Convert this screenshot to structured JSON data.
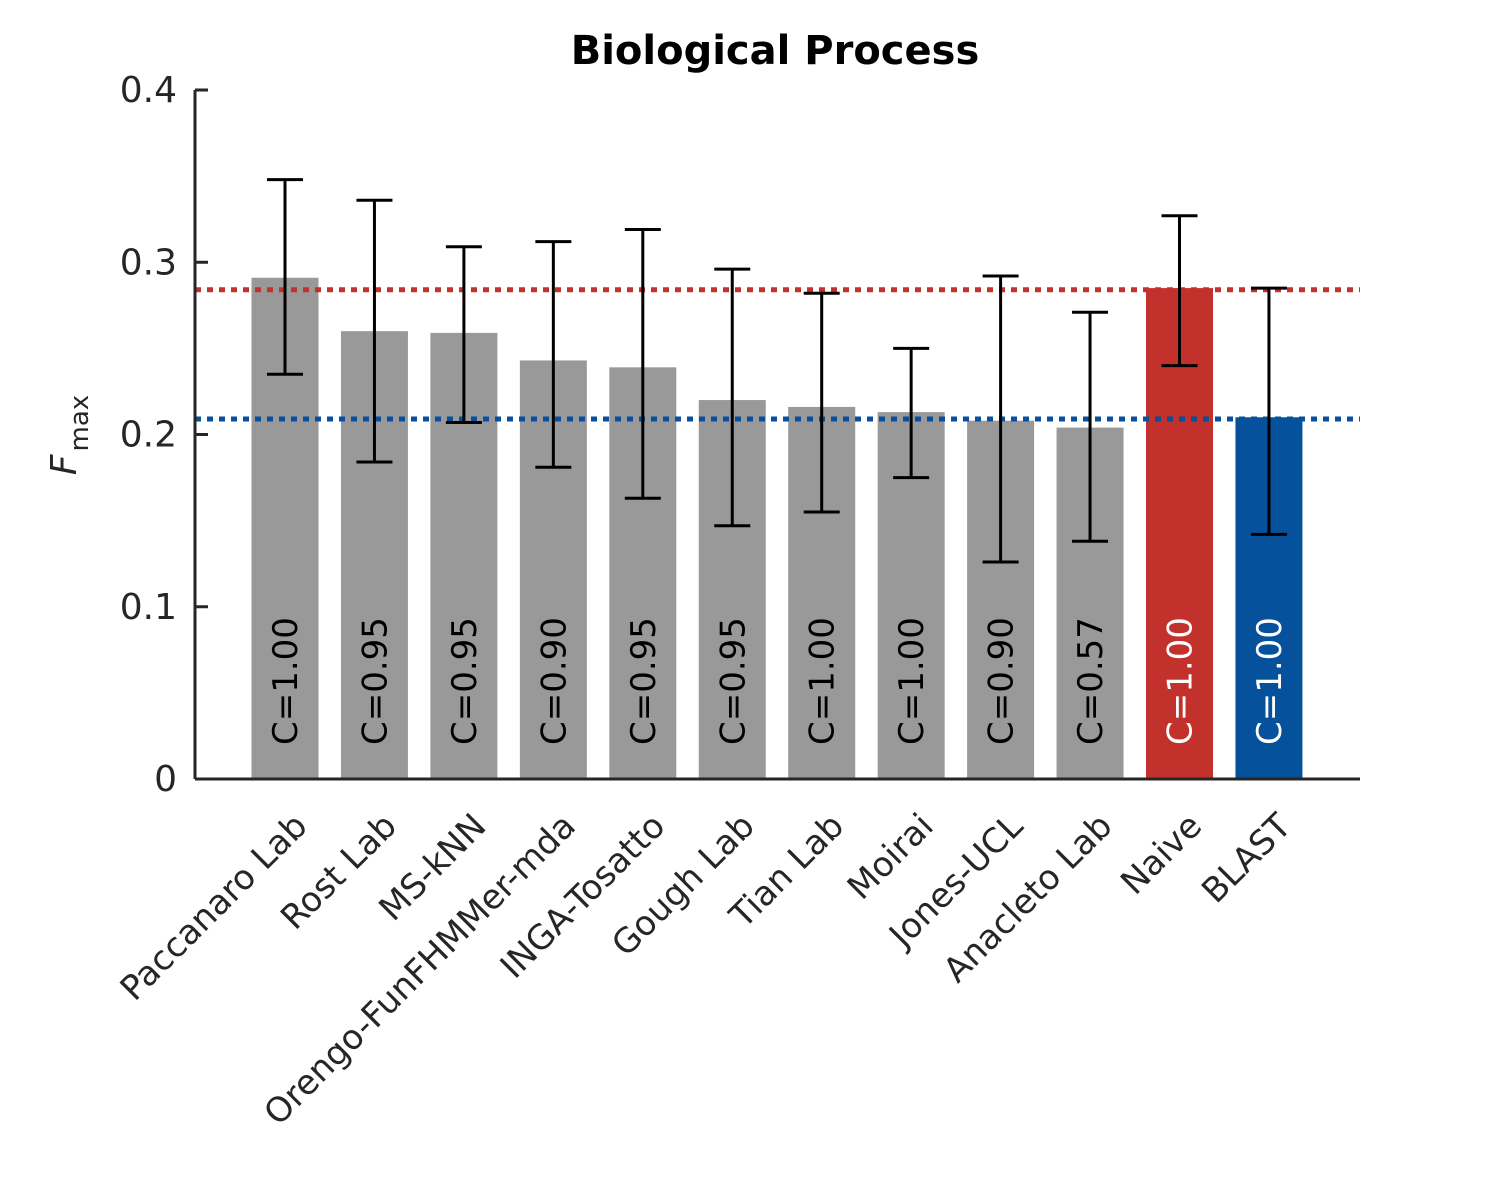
{
  "chart_data": {
    "type": "bar",
    "title": "Biological Process",
    "ylabel": {
      "main": "F",
      "sub": "max"
    },
    "ylim": [
      0,
      0.4
    ],
    "yticks": [
      0,
      0.1,
      0.2,
      0.3,
      0.4
    ],
    "ytick_labels": [
      "0",
      "0.1",
      "0.2",
      "0.3",
      "0.4"
    ],
    "categories": [
      "Paccanaro Lab",
      "Rost Lab",
      "MS-kNN",
      "Orengo-FunFHMMer-mda",
      "INGA-Tosatto",
      "Gough Lab",
      "Tian Lab",
      "Moirai",
      "Jones-UCL",
      "Anacleto Lab",
      "Naive",
      "BLAST"
    ],
    "values": [
      0.291,
      0.26,
      0.259,
      0.243,
      0.239,
      0.22,
      0.216,
      0.213,
      0.208,
      0.204,
      0.285,
      0.21
    ],
    "error_low": [
      0.235,
      0.184,
      0.207,
      0.181,
      0.163,
      0.147,
      0.155,
      0.175,
      0.126,
      0.138,
      0.24,
      0.142
    ],
    "error_high": [
      0.348,
      0.336,
      0.309,
      0.312,
      0.319,
      0.296,
      0.282,
      0.25,
      0.292,
      0.271,
      0.327,
      0.285
    ],
    "coverage_labels": [
      "C=1.00",
      "C=0.95",
      "C=0.95",
      "C=0.90",
      "C=0.95",
      "C=0.95",
      "C=1.00",
      "C=1.00",
      "C=0.90",
      "C=0.57",
      "C=1.00",
      "C=1.00"
    ],
    "bar_colors": [
      "#999999",
      "#999999",
      "#999999",
      "#999999",
      "#999999",
      "#999999",
      "#999999",
      "#999999",
      "#999999",
      "#999999",
      "#c3312d",
      "#05519c"
    ],
    "label_colors": [
      "#000000",
      "#000000",
      "#000000",
      "#000000",
      "#000000",
      "#000000",
      "#000000",
      "#000000",
      "#000000",
      "#000000",
      "#ffffff",
      "#ffffff"
    ],
    "reference_lines": [
      {
        "value": 0.284,
        "color": "#c3312d",
        "style": "dotted"
      },
      {
        "value": 0.209,
        "color": "#05519c",
        "style": "dotted"
      }
    ],
    "grid": false,
    "legend": "none"
  }
}
